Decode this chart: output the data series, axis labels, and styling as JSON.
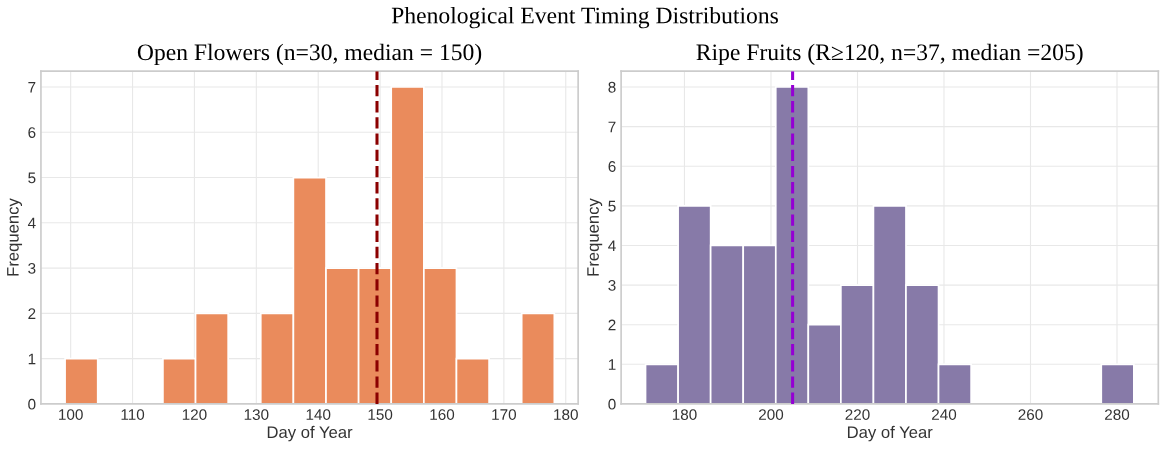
{
  "chart_data": [
    {
      "type": "histogram",
      "title": "Open Flowers (n=30, median = 150)",
      "annotations": [
        "Phenological Event Timing Distributions"
      ],
      "xlabel": "Day of Year",
      "ylabel": "Frequency",
      "bins": [
        99.1,
        104.37,
        109.64,
        114.91,
        120.18,
        125.45,
        130.72,
        135.99,
        141.26,
        146.53,
        151.8,
        157.07,
        162.34,
        167.61,
        172.88,
        178.15
      ],
      "values": [
        1,
        0,
        0,
        1,
        2,
        0,
        2,
        5,
        3,
        3,
        7,
        3,
        1,
        0,
        2
      ],
      "color": "#ea8b5c",
      "xlim": [
        95.2,
        182.0
      ],
      "xticks": [
        100,
        110,
        120,
        130,
        140,
        150,
        160,
        170,
        180
      ],
      "ylim": [
        0,
        7.35
      ],
      "yticks": [
        0,
        1,
        2,
        3,
        4,
        5,
        6,
        7
      ],
      "grid": true,
      "ref_lines": [
        {
          "axis": "x",
          "value": 149.5,
          "color": "#8b0000",
          "line_style": "dashed"
        }
      ]
    },
    {
      "type": "histogram",
      "title": "Ripe Fruits (R≥120, n=37, median =205)",
      "xlabel": "Day of Year",
      "ylabel": "Frequency",
      "bins": [
        171.0,
        178.53,
        186.05,
        193.58,
        201.11,
        208.63,
        216.16,
        223.69,
        231.21,
        238.74,
        246.27,
        253.79,
        261.32,
        268.85,
        276.37,
        283.9
      ],
      "values": [
        1,
        5,
        4,
        4,
        8,
        2,
        3,
        5,
        3,
        1,
        0,
        0,
        0,
        0,
        1
      ],
      "color": "#877aa8",
      "xlim": [
        165.35,
        289.55
      ],
      "xticks": [
        180,
        200,
        220,
        240,
        260,
        280
      ],
      "ylim": [
        0,
        8.4
      ],
      "yticks": [
        0,
        1,
        2,
        3,
        4,
        5,
        6,
        7,
        8
      ],
      "grid": true,
      "ref_lines": [
        {
          "axis": "x",
          "value": 205,
          "color": "#9400d3",
          "line_style": "dashed"
        }
      ]
    }
  ]
}
